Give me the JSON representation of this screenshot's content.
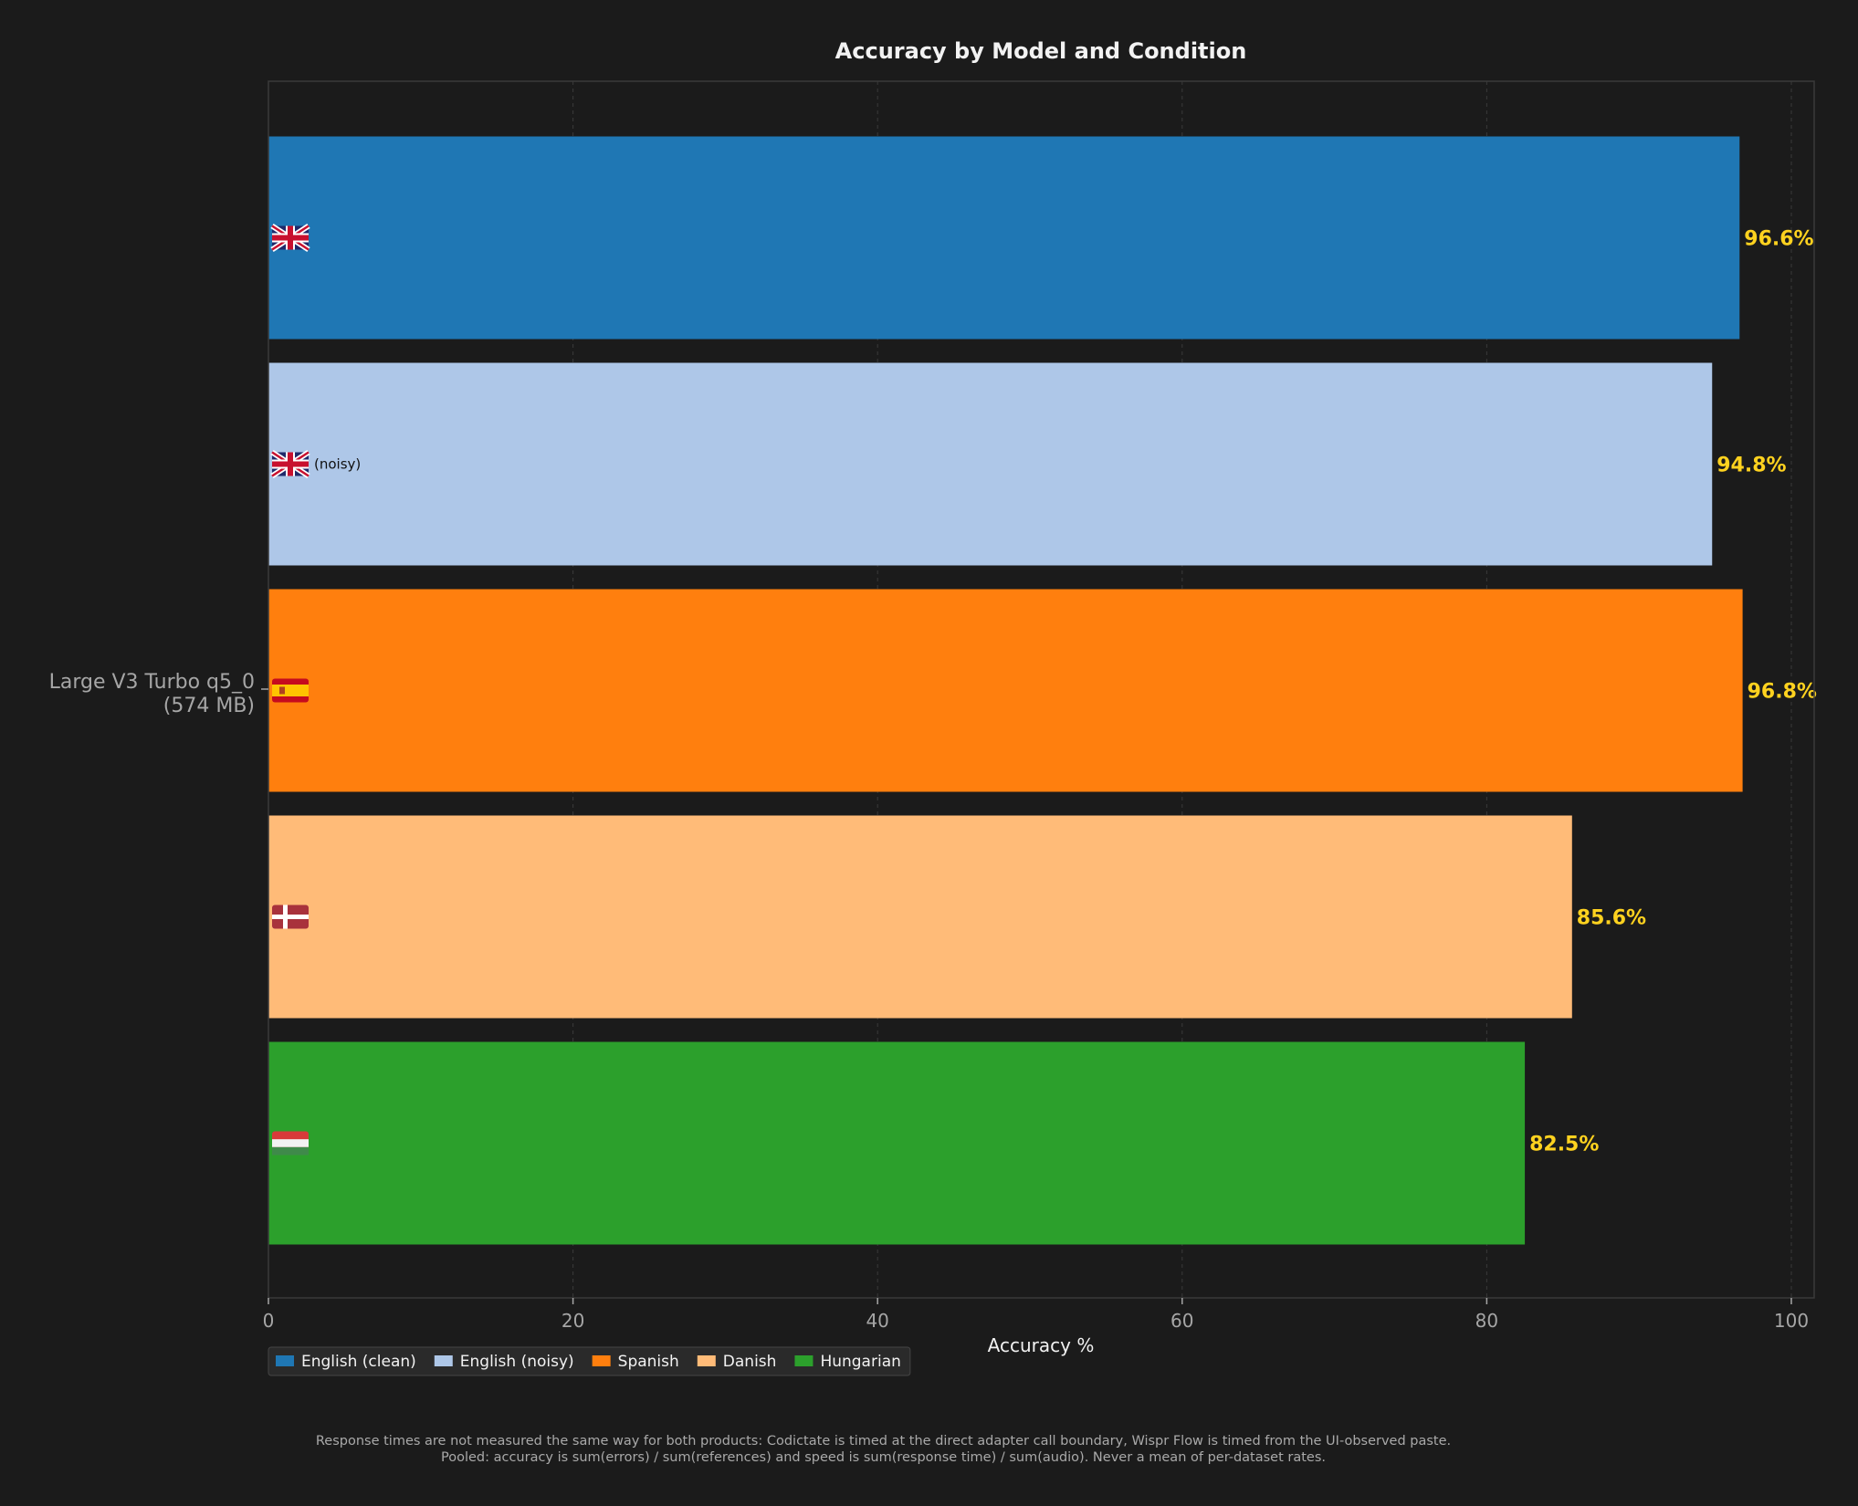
{
  "chart_data": {
    "type": "bar",
    "orientation": "horizontal",
    "title": "Accuracy by Model and Condition",
    "xlabel": "Accuracy %",
    "ylabel": "",
    "xlim": [
      0,
      101.5
    ],
    "xticks": [
      0,
      20,
      40,
      60,
      80,
      100
    ],
    "grid": "x-dashed",
    "legend_position": "bottom-left",
    "model_label": [
      "Large V3 Turbo q5_0",
      "(574 MB)"
    ],
    "series": [
      {
        "name": "English (clean)",
        "value": 96.6,
        "value_label": "96.6%",
        "flag": "gb",
        "bar_note": "",
        "color": "#1f77b4"
      },
      {
        "name": "English (noisy)",
        "value": 94.8,
        "value_label": "94.8%",
        "flag": "gb",
        "bar_note": "(noisy)",
        "color": "#aec7e8"
      },
      {
        "name": "Spanish",
        "value": 96.8,
        "value_label": "96.8%",
        "flag": "es",
        "bar_note": "",
        "color": "#ff7f0e"
      },
      {
        "name": "Danish",
        "value": 85.6,
        "value_label": "85.6%",
        "flag": "dk",
        "bar_note": "",
        "color": "#ffbb78"
      },
      {
        "name": "Hungarian",
        "value": 82.5,
        "value_label": "82.5%",
        "flag": "hu",
        "bar_note": "",
        "color": "#2ca02c"
      }
    ],
    "value_label_color": "#ffd21f"
  },
  "footnote": {
    "line1": "Response times are not measured the same way for both products: Codictate is timed at the direct adapter call boundary, Wispr Flow is timed from the UI-observed paste.",
    "line2": "Pooled: accuracy is sum(errors) / sum(references) and speed is sum(response time) / sum(audio). Never a mean of per-dataset rates."
  }
}
